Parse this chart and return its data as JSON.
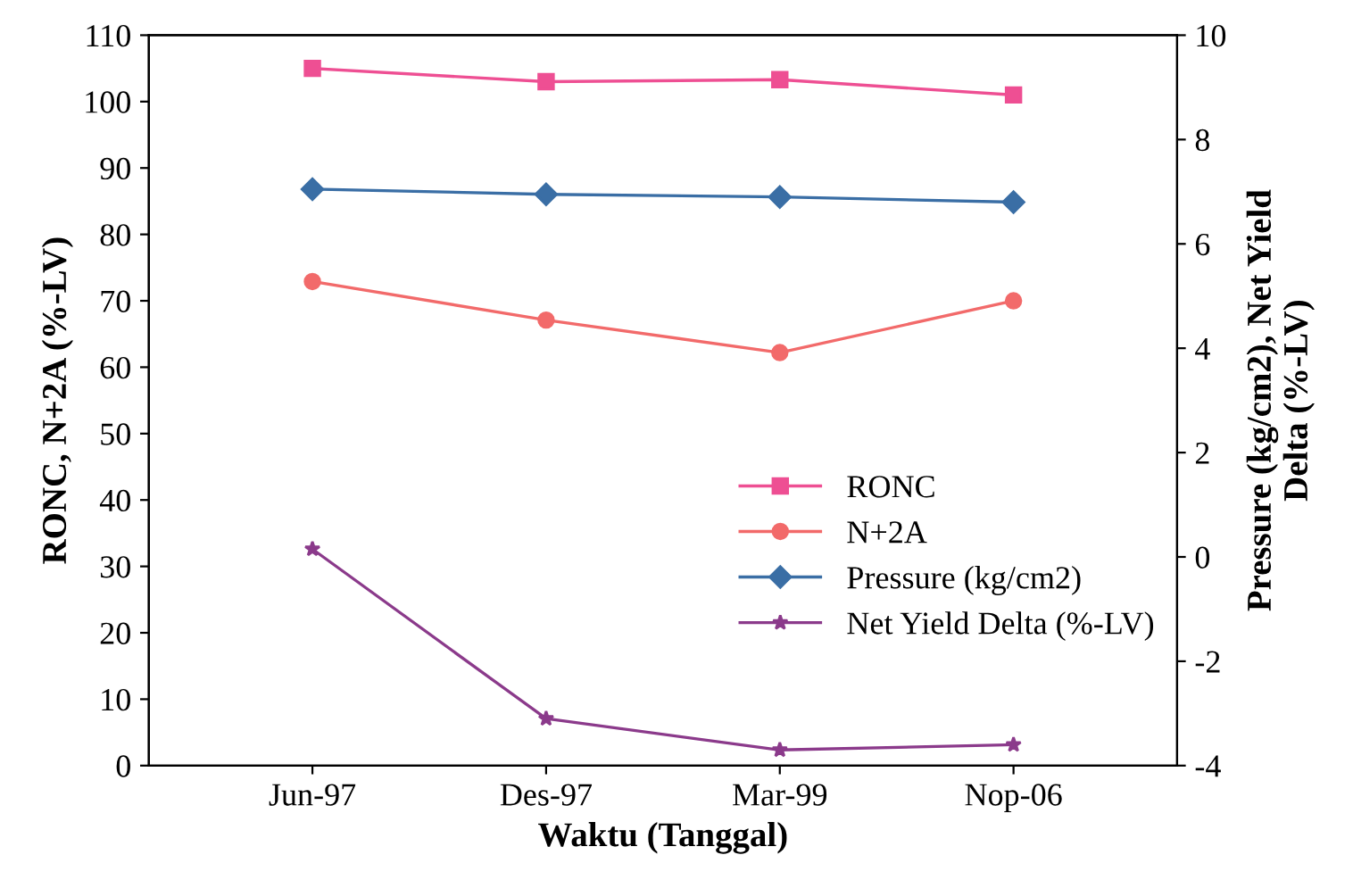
{
  "chart_data": {
    "type": "line",
    "xlabel": "Waktu (Tanggal)",
    "ylabel": "RONC, N+2A (%-LV)",
    "y2label": "Pressure (kg/cm2), Net Yield\nDelta (%-LV)",
    "categories": [
      "Jun-97",
      "Des-97",
      "Mar-99",
      "Nop-06"
    ],
    "series": [
      {
        "name": "RONC",
        "color": "#ee4f93",
        "marker": "square",
        "values": [
          105,
          103,
          103.3,
          101
        ]
      },
      {
        "name": "N+2A",
        "color": "#f26a6a",
        "marker": "circle",
        "values": [
          72.9,
          67.1,
          62.2,
          70
        ]
      },
      {
        "name": "Pressure (kg/cm2)",
        "color": "#3a6ea5",
        "marker": "diamond",
        "axis": "y2",
        "values": [
          7.05,
          6.95,
          6.9,
          6.8
        ]
      },
      {
        "name": "Net Yield Delta (%-LV)",
        "color": "#8b3a8b",
        "marker": "star",
        "axis": "y2",
        "values": [
          0.15,
          -3.1,
          -3.7,
          -3.6
        ]
      }
    ],
    "ylim": [
      0,
      110
    ],
    "yticks": [
      0,
      10,
      20,
      30,
      40,
      50,
      60,
      70,
      80,
      90,
      100,
      110
    ],
    "y2lim": [
      -4,
      10
    ],
    "y2ticks": [
      -4,
      -2,
      0,
      2,
      4,
      6,
      8,
      10
    ],
    "grid": false,
    "legend": "lower right",
    "line_style": "solid"
  }
}
